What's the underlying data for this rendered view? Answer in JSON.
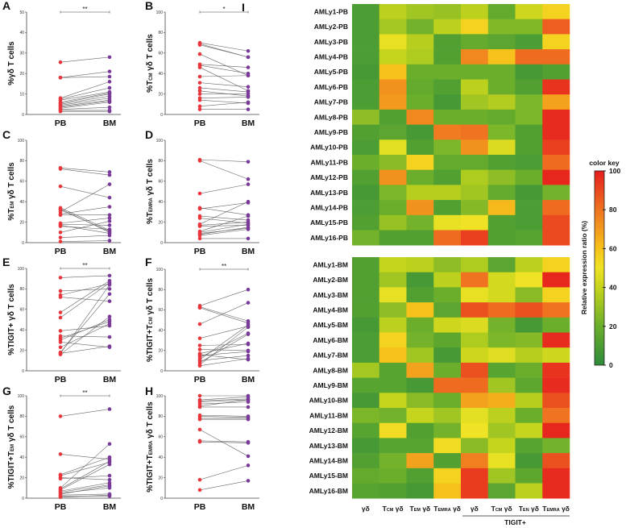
{
  "chart_data": [
    {
      "type": "scatter",
      "panel": "A",
      "ylabel": {
        "pre": "%γδ T cells",
        "sub": "",
        "post": ""
      },
      "ylim": [
        0,
        50
      ],
      "yticks": [
        0,
        10,
        20,
        30,
        40,
        50
      ],
      "categories": [
        "PB",
        "BM"
      ],
      "significance": "**",
      "pb": [
        25.5,
        18,
        18,
        8,
        7.5,
        7,
        6,
        5.5,
        5,
        4.5,
        4,
        3.5,
        3,
        2.5,
        2,
        1.5
      ],
      "bm": [
        28,
        21,
        18.5,
        16,
        13,
        11,
        10.5,
        10,
        9,
        8,
        7,
        6.5,
        6,
        3.5,
        2,
        1.5
      ]
    },
    {
      "type": "scatter",
      "panel": "B",
      "ylabel": {
        "pre": "%T",
        "sub": "CM",
        "post": " γδ T cells"
      },
      "ylim": [
        0,
        100
      ],
      "yticks": [
        0,
        20,
        40,
        60,
        80,
        100
      ],
      "categories": [
        "PB",
        "BM"
      ],
      "significance": "*",
      "pb": [
        70,
        69,
        68,
        59,
        49,
        48,
        46,
        37,
        31,
        26,
        23,
        20,
        16,
        14,
        8,
        5
      ],
      "bm": [
        62,
        56,
        56,
        38,
        46,
        40,
        23,
        38,
        27,
        22,
        18,
        20,
        17,
        11,
        12,
        5
      ]
    },
    {
      "type": "scatter",
      "panel": "C",
      "ylabel": {
        "pre": "%T",
        "sub": "EM",
        "post": " γδ T cells"
      },
      "ylim": [
        0,
        100
      ],
      "yticks": [
        0,
        20,
        40,
        60,
        80,
        100
      ],
      "categories": [
        "PB",
        "BM"
      ],
      "significance": "",
      "pb": [
        73,
        72,
        55,
        34,
        33,
        32,
        30,
        28,
        27,
        19,
        18,
        17,
        16,
        10,
        5,
        1
      ],
      "bm": [
        69,
        66,
        44,
        12,
        10,
        11,
        57,
        35,
        27,
        24,
        17,
        9,
        13,
        21,
        7,
        2
      ]
    },
    {
      "type": "scatter",
      "panel": "D",
      "ylabel": {
        "pre": "%T",
        "sub": "EMRA",
        "post": " γδ T cells"
      },
      "ylim": [
        0,
        100
      ],
      "yticks": [
        0,
        20,
        40,
        60,
        80,
        100
      ],
      "categories": [
        "PB",
        "BM"
      ],
      "significance": "",
      "pb": [
        81,
        80,
        48,
        34,
        33,
        26,
        24,
        18,
        17,
        16,
        11,
        10,
        9,
        8,
        7,
        4
      ],
      "bm": [
        79,
        62,
        57,
        27,
        39,
        22,
        19,
        40,
        20,
        17,
        26,
        18,
        14,
        15,
        13,
        4
      ]
    },
    {
      "type": "scatter",
      "panel": "E",
      "ylabel": {
        "pre": "%TIGIT+ γδ T cells",
        "sub": "",
        "post": ""
      },
      "ylim": [
        0,
        100
      ],
      "yticks": [
        0,
        20,
        40,
        60,
        80,
        100
      ],
      "categories": [
        "PB",
        "BM"
      ],
      "significance": "**",
      "pb": [
        91,
        78,
        74,
        72,
        57,
        52,
        39,
        34,
        32,
        30,
        28,
        23,
        18,
        17,
        16,
        17
      ],
      "bm": [
        93,
        80,
        85,
        68,
        88,
        86,
        44,
        33,
        48,
        50,
        23,
        46,
        75,
        84,
        53,
        24
      ]
    },
    {
      "type": "scatter",
      "panel": "F",
      "ylabel": {
        "pre": "%TIGIT+T",
        "sub": "CM",
        "post": " γδ T cells"
      },
      "ylim": [
        0,
        100
      ],
      "yticks": [
        0,
        20,
        40,
        60,
        80,
        100
      ],
      "categories": [
        "PB",
        "BM"
      ],
      "significance": "**",
      "pb": [
        64,
        63,
        62,
        46,
        32,
        25,
        21,
        17,
        16,
        15,
        13,
        11,
        10,
        8,
        6,
        5
      ],
      "bm": [
        80,
        49,
        47,
        67,
        44,
        26,
        20,
        27,
        11,
        19,
        37,
        45,
        15,
        36,
        43,
        12
      ]
    },
    {
      "type": "scatter",
      "panel": "G",
      "ylabel": {
        "pre": "%TIGIT+T",
        "sub": "EM",
        "post": " γδ T cells"
      },
      "ylim": [
        0,
        100
      ],
      "yticks": [
        0,
        20,
        40,
        60,
        80,
        100
      ],
      "categories": [
        "PB",
        "BM"
      ],
      "significance": "**",
      "pb": [
        80,
        43,
        23,
        22,
        20,
        19,
        10,
        9,
        8,
        7,
        6,
        5,
        4,
        3,
        2,
        1
      ],
      "bm": [
        87,
        38,
        40,
        35,
        18,
        22,
        53,
        36,
        33,
        15,
        13,
        10,
        12,
        4,
        2,
        3
      ]
    },
    {
      "type": "scatter",
      "panel": "H",
      "ylabel": {
        "pre": "%TIGIT+T",
        "sub": "EMRA",
        "post": " γδ T cells"
      },
      "ylim": [
        0,
        100
      ],
      "yticks": [
        0,
        20,
        40,
        60,
        80,
        100
      ],
      "categories": [
        "PB",
        "BM"
      ],
      "significance": "",
      "pb": [
        100,
        96,
        95,
        94,
        92,
        90,
        89,
        81,
        80,
        78,
        77,
        67,
        56,
        55,
        18,
        8
      ],
      "bm": [
        100,
        99,
        97,
        96,
        94,
        96,
        89,
        80,
        79,
        78,
        77,
        41,
        55,
        54,
        32,
        17
      ]
    },
    {
      "type": "heatmap",
      "panel": "I",
      "columns": [
        {
          "pre": "γδ",
          "sub": "",
          "post": ""
        },
        {
          "pre": "T",
          "sub": "CM",
          "post": " γδ"
        },
        {
          "pre": "T",
          "sub": "EM",
          "post": " γδ"
        },
        {
          "pre": "T",
          "sub": "EMRA",
          "post": " γδ"
        },
        {
          "pre": "γδ",
          "sub": "",
          "post": ""
        },
        {
          "pre": "T",
          "sub": "CM",
          "post": " γδ"
        },
        {
          "pre": "T",
          "sub": "EN",
          "post": " γδ"
        },
        {
          "pre": "T",
          "sub": "EMRA",
          "post": " γδ"
        }
      ],
      "group_label": "TIGIT+",
      "colorkey": {
        "title": "color key",
        "label": "Relative expression ratio (%)",
        "ticks": [
          0,
          20,
          40,
          60,
          80,
          100
        ],
        "range": [
          0,
          100
        ],
        "stops": [
          [
            0,
            "#2e8b3a"
          ],
          [
            20,
            "#6aae2c"
          ],
          [
            40,
            "#c5d41c"
          ],
          [
            50,
            "#f0e325"
          ],
          [
            60,
            "#f6c11b"
          ],
          [
            80,
            "#ef7320"
          ],
          [
            100,
            "#e61e1e"
          ]
        ]
      },
      "blocks": [
        {
          "rows": [
            "AMLy1-PB",
            "AMLy2-PB",
            "AMLy3-PB",
            "AMLy4-PB",
            "AMLy5-PB",
            "AMLy6-PB",
            "AMLy7-PB",
            "AMLy8-PB",
            "AMLy9-PB",
            "AMLy10-PB",
            "AMLy11-PB",
            "AMLy12-PB",
            "AMLy13-PB",
            "AMLy14-PB",
            "AMLy15-PB",
            "AMLy16-PB"
          ],
          "values": [
            [
              10,
              38,
              32,
              30,
              38,
              18,
              42,
              55
            ],
            [
              10,
              33,
              22,
              38,
              55,
              25,
              25,
              85
            ],
            [
              10,
              48,
              37,
              12,
              18,
              15,
              10,
              55
            ],
            [
              10,
              40,
              35,
              12,
              75,
              60,
              82,
              82
            ],
            [
              8,
              60,
              20,
              20,
              20,
              20,
              8,
              12
            ],
            [
              10,
              72,
              18,
              12,
              38,
              20,
              12,
              95
            ],
            [
              10,
              70,
              20,
              8,
              32,
              36,
              24,
              68
            ],
            [
              28,
              12,
              75,
              20,
              20,
              18,
              24,
              97
            ],
            [
              12,
              15,
              8,
              78,
              80,
              24,
              12,
              97
            ],
            [
              10,
              47,
              12,
              24,
              72,
              45,
              12,
              92
            ],
            [
              20,
              27,
              55,
              18,
              18,
              12,
              10,
              82
            ],
            [
              12,
              72,
              20,
              12,
              35,
              28,
              20,
              98
            ],
            [
              8,
              24,
              37,
              37,
              32,
              18,
              8,
              22
            ],
            [
              10,
              20,
              72,
              12,
              26,
              62,
              10,
              82
            ],
            [
              12,
              30,
              22,
              48,
              50,
              12,
              10,
              90
            ],
            [
              22,
              12,
              12,
              82,
              92,
              12,
              14,
              90
            ]
          ]
        },
        {
          "rows": [
            "AMLy1-BM",
            "AMLy2-BM",
            "AMLy3-BM",
            "AMLy4-BM",
            "AMLy5-BM",
            "AMLy6-BM",
            "AMLy7-BM",
            "AMLy8-BM",
            "AMLy9-BM",
            "AMLy10-BM",
            "AMLy11-BM",
            "AMLy12-BM",
            "AMLy13-BM",
            "AMLy14-BM",
            "AMLy15-BM",
            "AMLy16-BM"
          ],
          "values": [
            [
              12,
              40,
              38,
              28,
              35,
              15,
              38,
              55
            ],
            [
              12,
              32,
              8,
              38,
              80,
              43,
              50,
              98
            ],
            [
              12,
              48,
              12,
              20,
              48,
              43,
              27,
              55
            ],
            [
              12,
              28,
              60,
              15,
              88,
              82,
              88,
              80
            ],
            [
              8,
              38,
              20,
              42,
              45,
              22,
              8,
              20
            ],
            [
              10,
              55,
              22,
              16,
              35,
              24,
              26,
              97
            ],
            [
              10,
              60,
              32,
              8,
              42,
              46,
              37,
              42
            ],
            [
              33,
              14,
              68,
              20,
              88,
              14,
              20,
              95
            ],
            [
              14,
              14,
              8,
              82,
              82,
              32,
              16,
              97
            ],
            [
              8,
              40,
              27,
              20,
              68,
              65,
              37,
              88
            ],
            [
              24,
              22,
              40,
              32,
              47,
              38,
              20,
              80
            ],
            [
              14,
              52,
              12,
              22,
              50,
              32,
              40,
              98
            ],
            [
              8,
              14,
              14,
              52,
              27,
              40,
              14,
              22
            ],
            [
              12,
              22,
              68,
              12,
              77,
              48,
              8,
              88
            ],
            [
              18,
              20,
              12,
              55,
              93,
              32,
              16,
              97
            ],
            [
              14,
              12,
              8,
              60,
              93,
              15,
              38,
              97
            ]
          ]
        }
      ]
    }
  ],
  "colors": {
    "pb": "#e8363c",
    "bm": "#7a3a9a",
    "line": "#666666"
  }
}
